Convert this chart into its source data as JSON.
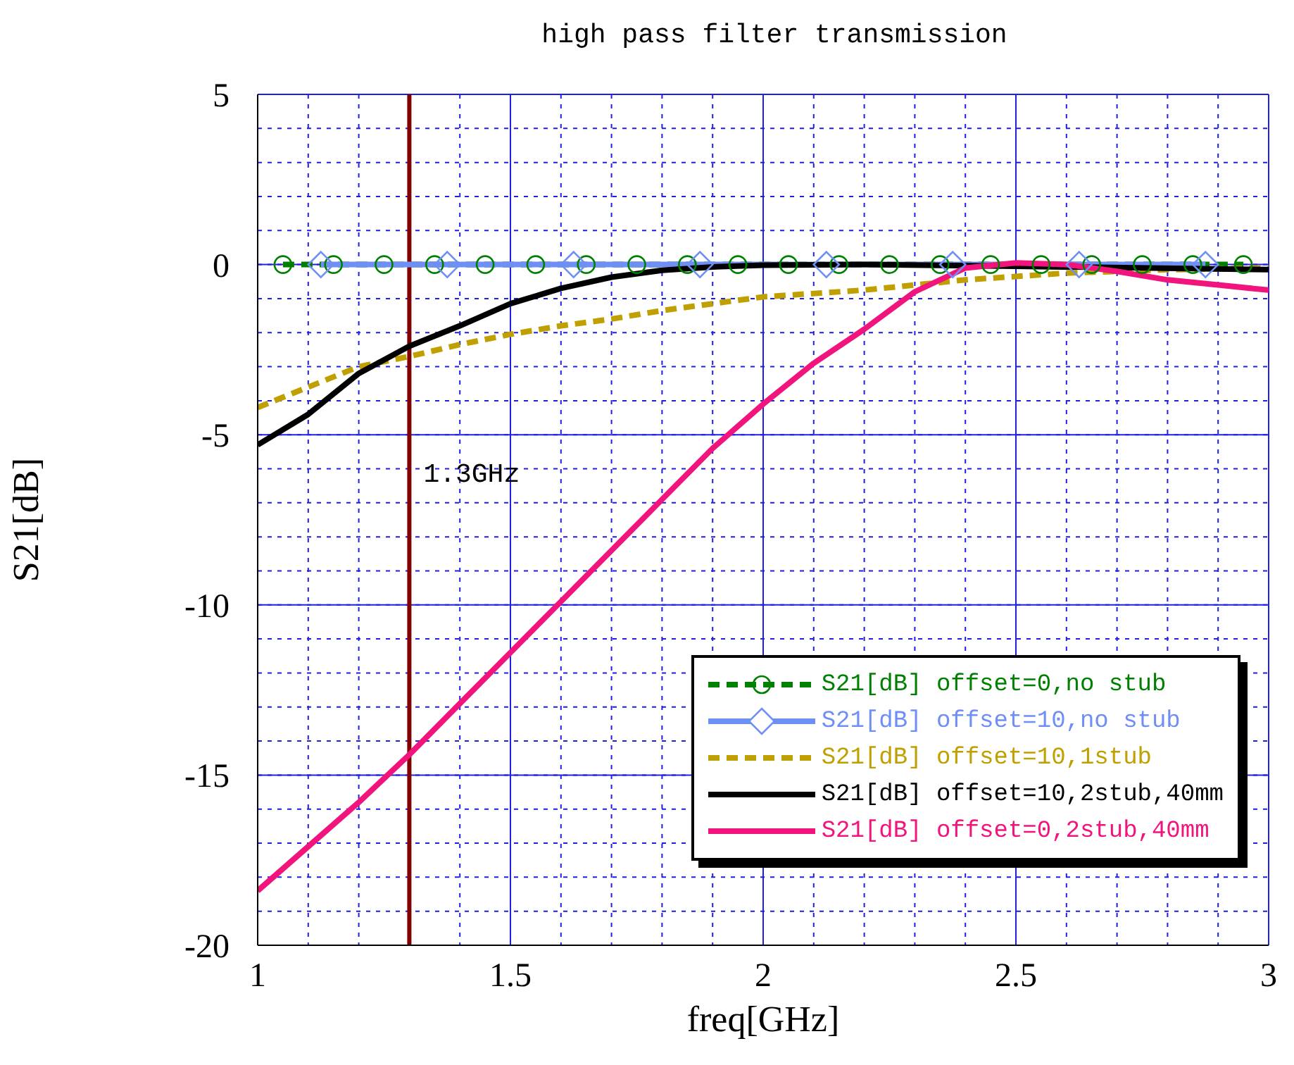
{
  "chart_data": {
    "type": "line",
    "title": "high pass filter transmission",
    "xlabel": "freq[GHz]",
    "ylabel": "S21[dB]",
    "xlim": [
      1,
      3
    ],
    "ylim": [
      -20,
      5
    ],
    "xticks": [
      1,
      {
        "value": 1.1,
        "label": null
      },
      {
        "value": 1.2,
        "label": null
      },
      {
        "value": 1.3,
        "label": null
      },
      {
        "value": 1.4,
        "label": null
      },
      {
        "value": 1.5,
        "label": "1.5"
      },
      {
        "value": 1.6,
        "label": null
      },
      {
        "value": 1.7,
        "label": null
      },
      {
        "value": 1.8,
        "label": null
      },
      {
        "value": 1.9,
        "label": null
      },
      2,
      {
        "value": 2.1,
        "label": null
      },
      {
        "value": 2.2,
        "label": null
      },
      {
        "value": 2.3,
        "label": null
      },
      {
        "value": 2.4,
        "label": null
      },
      {
        "value": 2.5,
        "label": "2.5"
      },
      {
        "value": 2.6,
        "label": null
      },
      {
        "value": 2.7,
        "label": null
      },
      {
        "value": 2.8,
        "label": null
      },
      {
        "value": 2.9,
        "label": null
      },
      3
    ],
    "yticks": [
      -20,
      {
        "value": -19,
        "label": null
      },
      {
        "value": -18,
        "label": null
      },
      {
        "value": -17,
        "label": null
      },
      {
        "value": -16,
        "label": null
      },
      -15,
      {
        "value": -14,
        "label": null
      },
      {
        "value": -13,
        "label": null
      },
      {
        "value": -12,
        "label": null
      },
      {
        "value": -11,
        "label": null
      },
      -10,
      {
        "value": -9,
        "label": null
      },
      {
        "value": -8,
        "label": null
      },
      {
        "value": -7,
        "label": null
      },
      {
        "value": -6,
        "label": null
      },
      -5,
      {
        "value": -4,
        "label": null
      },
      {
        "value": -3,
        "label": null
      },
      {
        "value": -2,
        "label": null
      },
      {
        "value": -1,
        "label": null
      },
      0,
      {
        "value": 1,
        "label": null
      },
      {
        "value": 2,
        "label": null
      },
      {
        "value": 3,
        "label": null
      },
      {
        "value": 4,
        "label": null
      },
      5
    ],
    "grid": true,
    "legend": "bottom right",
    "ref_lines": [
      {
        "axis": "x",
        "value": 1.3,
        "label": "1.3GHz",
        "color": "#800000"
      }
    ],
    "series": [
      {
        "name": "S21[dB] offset=0,no stub",
        "color": "#008000",
        "marker": "circle",
        "line_style": "dashed",
        "x": [
          1.05,
          1.15,
          1.25,
          1.35,
          1.45,
          1.55,
          1.65,
          1.75,
          1.85,
          1.95,
          2.05,
          2.15,
          2.25,
          2.35,
          2.45,
          2.55,
          2.65,
          2.75,
          2.85,
          2.95
        ],
        "values": [
          0,
          0,
          0,
          0,
          0,
          0,
          0,
          0,
          0,
          0,
          0,
          0,
          0,
          0,
          0,
          0,
          0,
          0,
          0,
          0
        ]
      },
      {
        "name": "S21[dB] offset=10,no stub",
        "color": "#6f8ff7",
        "marker": "diamond",
        "line_style": "solid",
        "x": [
          1.125,
          1.375,
          1.625,
          1.875,
          2.125,
          2.375,
          2.625,
          2.875
        ],
        "values": [
          0,
          0,
          0,
          0,
          0,
          0,
          0,
          0
        ]
      },
      {
        "name": "S21[dB] offset=10,1stub",
        "color": "#c0a000",
        "marker": "none",
        "line_style": "dashed",
        "x": [
          1,
          1.1,
          1.2,
          1.3,
          1.4,
          1.5,
          1.6,
          1.7,
          1.8,
          1.9,
          2,
          2.2,
          2.4,
          2.6,
          2.8,
          3
        ],
        "values": [
          -4.2,
          -3.6,
          -3.0,
          -2.7,
          -2.35,
          -2.05,
          -1.8,
          -1.6,
          -1.35,
          -1.15,
          -0.95,
          -0.75,
          -0.45,
          -0.25,
          -0.15,
          -0.1
        ]
      },
      {
        "name": "S21[dB] offset=10,2stub,40mm",
        "color": "#000000",
        "marker": "none",
        "line_style": "solid",
        "x": [
          1,
          1.1,
          1.2,
          1.3,
          1.4,
          1.5,
          1.6,
          1.7,
          1.8,
          1.9,
          2,
          2.2,
          2.5,
          3
        ],
        "values": [
          -5.3,
          -4.4,
          -3.2,
          -2.4,
          -1.8,
          -1.15,
          -0.7,
          -0.37,
          -0.17,
          -0.07,
          -0.02,
          0,
          -0.05,
          -0.15
        ]
      },
      {
        "name": "S21[dB] offset=0,2stub,40mm",
        "color": "#f0147c",
        "marker": "none",
        "line_style": "solid",
        "x": [
          1,
          1.1,
          1.2,
          1.3,
          1.4,
          1.5,
          1.6,
          1.7,
          1.8,
          1.9,
          2,
          2.1,
          2.2,
          2.3,
          2.4,
          2.5,
          2.6,
          2.7,
          2.8,
          2.9,
          3
        ],
        "values": [
          -18.4,
          -17.1,
          -15.8,
          -14.4,
          -12.9,
          -11.4,
          -9.9,
          -8.4,
          -6.9,
          -5.4,
          -4.1,
          -2.9,
          -1.9,
          -0.8,
          -0.1,
          0.05,
          0,
          -0.2,
          -0.45,
          -0.6,
          -0.75
        ]
      }
    ]
  }
}
